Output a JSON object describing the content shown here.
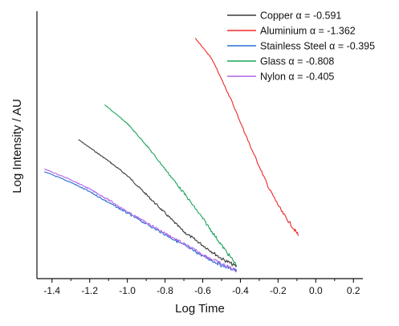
{
  "chart_data": {
    "type": "line",
    "xlabel": "Log Time",
    "ylabel": "Log Intensity / AU",
    "xlim": [
      -1.48,
      0.25
    ],
    "ylim": [
      0,
      100
    ],
    "x_ticks": [
      -1.4,
      -1.2,
      -1.0,
      -0.8,
      -0.6,
      -0.4,
      -0.2,
      0.0,
      0.2
    ],
    "x_tick_labels": [
      "-1.4",
      "-1.2",
      "-1.0",
      "-0.8",
      "-0.6",
      "-0.4",
      "-0.2",
      "0.0",
      "0.2"
    ],
    "y_tick_labels_shown": false,
    "grid": false,
    "legend_position": "top-right",
    "series": [
      {
        "name": "Copper",
        "alpha_label": "α = -0.591",
        "color": "#3a3a3a",
        "x": [
          -1.26,
          -1.2,
          -1.1,
          -1.0,
          -0.9,
          -0.8,
          -0.7,
          -0.6,
          -0.5,
          -0.42
        ],
        "y": [
          52,
          49,
          44,
          38.5,
          31.5,
          24.5,
          17.5,
          12.5,
          7.5,
          4.5
        ]
      },
      {
        "name": "Aluminium",
        "alpha_label": "α = -1.362",
        "color": "#ee2a2a",
        "x": [
          -0.64,
          -0.55,
          -0.45,
          -0.35,
          -0.25,
          -0.18,
          -0.12,
          -0.09
        ],
        "y": [
          90,
          82,
          67,
          50,
          34,
          25,
          19,
          16
        ]
      },
      {
        "name": "Stainless Steel",
        "alpha_label": "α = -0.395",
        "color": "#2b6fd6",
        "x": [
          -1.44,
          -1.3,
          -1.2,
          -1.1,
          -1.0,
          -0.9,
          -0.8,
          -0.7,
          -0.6,
          -0.5,
          -0.42
        ],
        "y": [
          40,
          36,
          32.5,
          28.5,
          24.5,
          20.5,
          16.5,
          12.5,
          8.5,
          5,
          3
        ]
      },
      {
        "name": "Glass",
        "alpha_label": "α = -0.808",
        "color": "#1fa35a",
        "x": [
          -1.12,
          -1.0,
          -0.9,
          -0.8,
          -0.7,
          -0.6,
          -0.5,
          -0.42
        ],
        "y": [
          65,
          58,
          50,
          41,
          32,
          22.5,
          12.5,
          5
        ]
      },
      {
        "name": "Nylon",
        "alpha_label": "α = -0.405",
        "color": "#b066e6",
        "x": [
          -1.44,
          -1.3,
          -1.2,
          -1.1,
          -1.0,
          -0.9,
          -0.8,
          -0.7,
          -0.6,
          -0.5,
          -0.42
        ],
        "y": [
          41,
          37,
          33.5,
          29.5,
          25,
          21,
          17,
          13,
          9,
          5.5,
          3
        ]
      }
    ]
  }
}
